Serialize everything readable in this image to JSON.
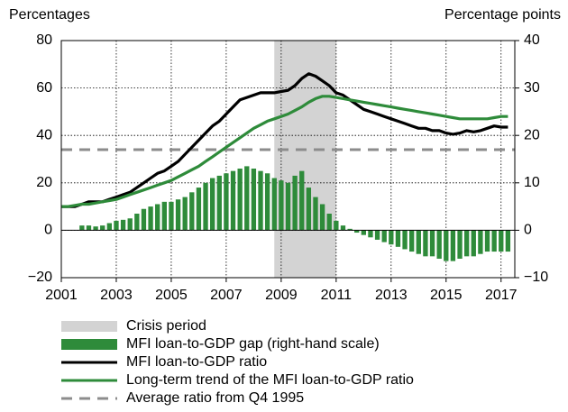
{
  "chart_data": {
    "type": "bar-line",
    "y_label": "Percentages",
    "y2_label": "Percentage points",
    "x": [
      2001,
      2001.25,
      2001.5,
      2001.75,
      2002,
      2002.25,
      2002.5,
      2002.75,
      2003,
      2003.25,
      2003.5,
      2003.75,
      2004,
      2004.25,
      2004.5,
      2004.75,
      2005,
      2005.25,
      2005.5,
      2005.75,
      2006,
      2006.25,
      2006.5,
      2006.75,
      2007,
      2007.25,
      2007.5,
      2007.75,
      2008,
      2008.25,
      2008.5,
      2008.75,
      2009,
      2009.25,
      2009.5,
      2009.75,
      2010,
      2010.25,
      2010.5,
      2010.75,
      2011,
      2011.25,
      2011.5,
      2011.75,
      2012,
      2012.25,
      2012.5,
      2012.75,
      2013,
      2013.25,
      2013.5,
      2013.75,
      2014,
      2014.25,
      2014.5,
      2014.75,
      2015,
      2015.25,
      2015.5,
      2015.75,
      2016,
      2016.25,
      2016.5,
      2016.75,
      2017,
      2017.25
    ],
    "series": [
      {
        "name": "MFI loan-to-GDP gap (right-hand scale)",
        "type": "bar",
        "axis": "y2",
        "color": "#2e8b3a",
        "values": [
          null,
          null,
          null,
          1.0,
          1.0,
          0.8,
          1.0,
          1.5,
          2,
          2.2,
          2.5,
          3.5,
          4.5,
          5,
          5.5,
          6,
          6,
          6.5,
          7,
          8,
          9,
          10,
          11,
          11.5,
          12,
          12.5,
          13,
          13.5,
          13,
          12.5,
          12,
          11,
          10.5,
          10,
          11.5,
          12.5,
          9,
          7,
          5.5,
          3.5,
          2,
          1,
          0.3,
          -0.5,
          -1,
          -1.5,
          -2,
          -2.5,
          -3,
          -3.5,
          -4,
          -4.5,
          -5,
          -5.5,
          -5.5,
          -6,
          -6.5,
          -6.5,
          -6,
          -5.5,
          -5.5,
          -5,
          -4.5,
          -4.5,
          -4.5,
          -4.5
        ]
      },
      {
        "name": "MFI loan-to-GDP ratio",
        "type": "line",
        "color": "#000000",
        "values": [
          10,
          10,
          10,
          11,
          12,
          12,
          12,
          13,
          14,
          15,
          16,
          18,
          20,
          22,
          24,
          25,
          27,
          29,
          32,
          35,
          38,
          41,
          44,
          46,
          49,
          52,
          55,
          56,
          57,
          58,
          58,
          58,
          58.5,
          59,
          61,
          64,
          66,
          65,
          63,
          61,
          58,
          57,
          55,
          53,
          51,
          50,
          49,
          48,
          47,
          46,
          45,
          44,
          43,
          43,
          42,
          42,
          41,
          40.5,
          41,
          42,
          41.5,
          42,
          43,
          44,
          43.5,
          43.5
        ]
      },
      {
        "name": "Long-term trend of the MFI loan-to-GDP ratio",
        "type": "line",
        "color": "#2e8b3a",
        "values": [
          10,
          10,
          10.5,
          11,
          11,
          11.5,
          12,
          12.5,
          13,
          14,
          15,
          16,
          17,
          18,
          19,
          20,
          21,
          22.5,
          24,
          25.5,
          27,
          29,
          31,
          33,
          35,
          37,
          39,
          41,
          43,
          44.5,
          46,
          47,
          48,
          49,
          50.5,
          52,
          54,
          55.5,
          56.5,
          56.5,
          56,
          55.5,
          55,
          54.5,
          54,
          53.5,
          53,
          52.5,
          52,
          51.5,
          51,
          50.5,
          50,
          49.5,
          49,
          48.5,
          48,
          47.5,
          47,
          47,
          47,
          47,
          47,
          47.5,
          48,
          48
        ]
      }
    ],
    "crisis": {
      "name": "Crisis period",
      "x": [
        2008.75,
        2011.0
      ],
      "color": "#d3d3d3"
    },
    "reference_line": {
      "name": "Average ratio from Q4 1995",
      "value": 34,
      "color": "#8c8c8c"
    },
    "xlim": [
      2001,
      2017.5
    ],
    "xticks": [
      2001,
      2003,
      2005,
      2007,
      2009,
      2011,
      2013,
      2015,
      2017
    ],
    "ylim": [
      -20,
      80
    ],
    "yticks": [
      {
        "value": -20,
        "label": "−20"
      },
      0,
      20,
      40,
      60,
      80
    ],
    "y2lim": [
      -10,
      40
    ],
    "y2ticks": [
      {
        "value": -10,
        "label": "−10"
      },
      0,
      10,
      20,
      30,
      40
    ],
    "grid": true
  }
}
